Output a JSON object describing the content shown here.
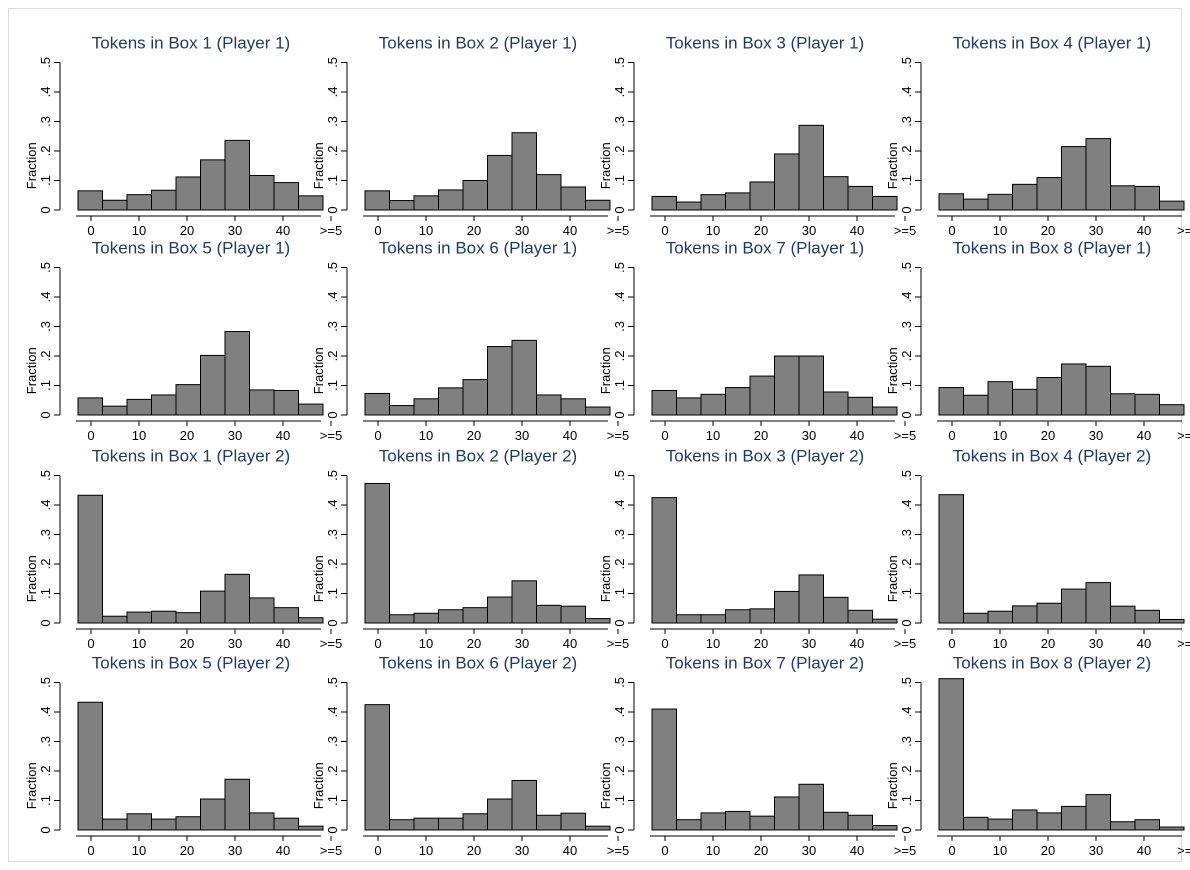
{
  "chart_data": [
    {
      "type": "bar",
      "title": "Tokens in Box 1 (Player 1)",
      "ylabel": "Fraction",
      "x_tick_labels": [
        "0",
        "10",
        "20",
        "30",
        "40",
        ">=5"
      ],
      "y_tick_labels": [
        "0",
        ".1",
        ".2",
        ".3",
        ".4",
        ".5"
      ],
      "ylim": [
        0,
        0.5
      ],
      "bins": 10,
      "values": [
        0.065,
        0.033,
        0.052,
        0.067,
        0.112,
        0.17,
        0.236,
        0.117,
        0.093,
        0.048
      ]
    },
    {
      "type": "bar",
      "title": "Tokens in Box 2 (Player 1)",
      "ylabel": "Fraction",
      "x_tick_labels": [
        "0",
        "10",
        "20",
        "30",
        "40",
        ">=5"
      ],
      "y_tick_labels": [
        "0",
        ".1",
        ".2",
        ".3",
        ".4",
        ".5"
      ],
      "ylim": [
        0,
        0.5
      ],
      "bins": 10,
      "values": [
        0.065,
        0.032,
        0.048,
        0.068,
        0.1,
        0.185,
        0.262,
        0.12,
        0.078,
        0.033
      ]
    },
    {
      "type": "bar",
      "title": "Tokens in Box 3 (Player 1)",
      "ylabel": "Fraction",
      "x_tick_labels": [
        "0",
        "10",
        "20",
        "30",
        "40",
        ">=5"
      ],
      "y_tick_labels": [
        "0",
        ".1",
        ".2",
        ".3",
        ".4",
        ".5"
      ],
      "ylim": [
        0,
        0.5
      ],
      "bins": 10,
      "values": [
        0.046,
        0.027,
        0.052,
        0.058,
        0.095,
        0.19,
        0.287,
        0.113,
        0.08,
        0.046
      ]
    },
    {
      "type": "bar",
      "title": "Tokens in Box 4 (Player 1)",
      "ylabel": "Fraction",
      "x_tick_labels": [
        "0",
        "10",
        "20",
        "30",
        "40",
        ">=50"
      ],
      "y_tick_labels": [
        "0",
        ".1",
        ".2",
        ".3",
        ".4",
        ".5"
      ],
      "ylim": [
        0,
        0.5
      ],
      "bins": 10,
      "values": [
        0.055,
        0.037,
        0.053,
        0.087,
        0.11,
        0.215,
        0.242,
        0.082,
        0.08,
        0.03
      ]
    },
    {
      "type": "bar",
      "title": "Tokens in Box 5 (Player 1)",
      "ylabel": "Fraction",
      "x_tick_labels": [
        "0",
        "10",
        "20",
        "30",
        "40",
        ">=5"
      ],
      "y_tick_labels": [
        "0",
        ".1",
        ".2",
        ".3",
        ".4",
        ".5"
      ],
      "ylim": [
        0,
        0.5
      ],
      "bins": 10,
      "values": [
        0.058,
        0.03,
        0.053,
        0.068,
        0.103,
        0.202,
        0.283,
        0.085,
        0.083,
        0.037
      ]
    },
    {
      "type": "bar",
      "title": "Tokens in Box 6 (Player 1)",
      "ylabel": "Fraction",
      "x_tick_labels": [
        "0",
        "10",
        "20",
        "30",
        "40",
        ">=5"
      ],
      "y_tick_labels": [
        "0",
        ".1",
        ".2",
        ".3",
        ".4",
        ".5"
      ],
      "ylim": [
        0,
        0.5
      ],
      "bins": 10,
      "values": [
        0.073,
        0.032,
        0.055,
        0.092,
        0.12,
        0.232,
        0.253,
        0.068,
        0.055,
        0.027
      ]
    },
    {
      "type": "bar",
      "title": "Tokens in Box 7 (Player 1)",
      "ylabel": "Fraction",
      "x_tick_labels": [
        "0",
        "10",
        "20",
        "30",
        "40",
        ">=5"
      ],
      "y_tick_labels": [
        "0",
        ".1",
        ".2",
        ".3",
        ".4",
        ".5"
      ],
      "ylim": [
        0,
        0.5
      ],
      "bins": 10,
      "values": [
        0.083,
        0.058,
        0.07,
        0.093,
        0.132,
        0.2,
        0.2,
        0.078,
        0.06,
        0.027
      ]
    },
    {
      "type": "bar",
      "title": "Tokens in Box 8 (Player 1)",
      "ylabel": "Fraction",
      "x_tick_labels": [
        "0",
        "10",
        "20",
        "30",
        "40",
        ">=50"
      ],
      "y_tick_labels": [
        "0",
        ".1",
        ".2",
        ".3",
        ".4",
        ".5"
      ],
      "ylim": [
        0,
        0.5
      ],
      "bins": 10,
      "values": [
        0.093,
        0.067,
        0.113,
        0.087,
        0.127,
        0.173,
        0.165,
        0.072,
        0.07,
        0.035
      ]
    },
    {
      "type": "bar",
      "title": "Tokens in Box 1 (Player 2)",
      "ylabel": "Fraction",
      "x_tick_labels": [
        "0",
        "10",
        "20",
        "30",
        "40",
        ">=5"
      ],
      "y_tick_labels": [
        "0",
        ".1",
        ".2",
        ".3",
        ".4",
        ".5"
      ],
      "ylim": [
        0,
        0.5
      ],
      "bins": 10,
      "values": [
        0.433,
        0.023,
        0.037,
        0.04,
        0.035,
        0.108,
        0.165,
        0.085,
        0.052,
        0.018
      ]
    },
    {
      "type": "bar",
      "title": "Tokens in Box 2 (Player 2)",
      "ylabel": "Fraction",
      "x_tick_labels": [
        "0",
        "10",
        "20",
        "30",
        "40",
        ">=5"
      ],
      "y_tick_labels": [
        "0",
        ".1",
        ".2",
        ".3",
        ".4",
        ".5"
      ],
      "ylim": [
        0,
        0.5
      ],
      "bins": 10,
      "values": [
        0.473,
        0.028,
        0.033,
        0.045,
        0.052,
        0.088,
        0.143,
        0.06,
        0.057,
        0.015
      ]
    },
    {
      "type": "bar",
      "title": "Tokens in Box 3 (Player 2)",
      "ylabel": "Fraction",
      "x_tick_labels": [
        "0",
        "10",
        "20",
        "30",
        "40",
        ">=5"
      ],
      "y_tick_labels": [
        "0",
        ".1",
        ".2",
        ".3",
        ".4",
        ".5"
      ],
      "ylim": [
        0,
        0.5
      ],
      "bins": 10,
      "values": [
        0.425,
        0.028,
        0.028,
        0.045,
        0.048,
        0.107,
        0.163,
        0.087,
        0.043,
        0.013
      ]
    },
    {
      "type": "bar",
      "title": "Tokens in Box 4 (Player 2)",
      "ylabel": "Fraction",
      "x_tick_labels": [
        "0",
        "10",
        "20",
        "30",
        "40",
        ">=50"
      ],
      "y_tick_labels": [
        "0",
        ".1",
        ".2",
        ".3",
        ".4",
        ".5"
      ],
      "ylim": [
        0,
        0.5
      ],
      "bins": 10,
      "values": [
        0.435,
        0.033,
        0.04,
        0.058,
        0.067,
        0.115,
        0.137,
        0.057,
        0.043,
        0.012
      ]
    },
    {
      "type": "bar",
      "title": "Tokens in Box 5 (Player 2)",
      "ylabel": "Fraction",
      "x_tick_labels": [
        "0",
        "10",
        "20",
        "30",
        "40",
        ">=5"
      ],
      "y_tick_labels": [
        "0",
        ".1",
        ".2",
        ".3",
        ".4",
        ".5"
      ],
      "ylim": [
        0,
        0.5
      ],
      "bins": 10,
      "values": [
        0.433,
        0.037,
        0.055,
        0.037,
        0.045,
        0.105,
        0.172,
        0.058,
        0.04,
        0.013
      ]
    },
    {
      "type": "bar",
      "title": "Tokens in Box 6 (Player 2)",
      "ylabel": "Fraction",
      "x_tick_labels": [
        "0",
        "10",
        "20",
        "30",
        "40",
        ">=5"
      ],
      "y_tick_labels": [
        "0",
        ".1",
        ".2",
        ".3",
        ".4",
        ".5"
      ],
      "ylim": [
        0,
        0.5
      ],
      "bins": 10,
      "values": [
        0.425,
        0.035,
        0.04,
        0.04,
        0.055,
        0.105,
        0.168,
        0.05,
        0.057,
        0.013
      ]
    },
    {
      "type": "bar",
      "title": "Tokens in Box 7 (Player 2)",
      "ylabel": "Fraction",
      "x_tick_labels": [
        "0",
        "10",
        "20",
        "30",
        "40",
        ">=5"
      ],
      "y_tick_labels": [
        "0",
        ".1",
        ".2",
        ".3",
        ".4",
        ".5"
      ],
      "ylim": [
        0,
        0.5
      ],
      "bins": 10,
      "values": [
        0.41,
        0.035,
        0.058,
        0.063,
        0.047,
        0.112,
        0.155,
        0.06,
        0.05,
        0.015
      ]
    },
    {
      "type": "bar",
      "title": "Tokens in Box 8 (Player 2)",
      "ylabel": "Fraction",
      "x_tick_labels": [
        "0",
        "10",
        "20",
        "30",
        "40",
        ">=50"
      ],
      "y_tick_labels": [
        "0",
        ".1",
        ".2",
        ".3",
        ".4",
        ".5"
      ],
      "ylim": [
        0,
        0.5
      ],
      "bins": 10,
      "values": [
        0.513,
        0.043,
        0.037,
        0.068,
        0.058,
        0.08,
        0.12,
        0.028,
        0.035,
        0.01
      ]
    }
  ]
}
